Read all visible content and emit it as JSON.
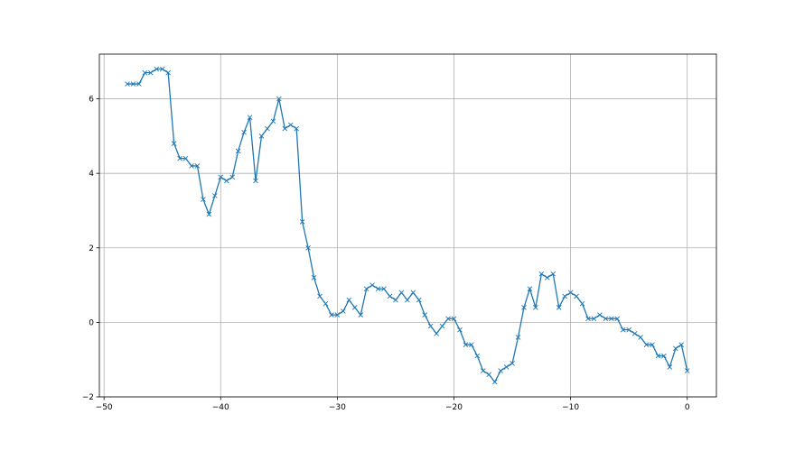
{
  "chart_data": {
    "type": "line",
    "title": "",
    "xlabel": "",
    "ylabel": "",
    "xlim": [
      -50.4,
      2.5
    ],
    "ylim": [
      -2.0,
      7.2
    ],
    "grid": true,
    "marker": "x",
    "color": "#1f77b4",
    "xticks": [
      -50,
      -40,
      -30,
      -20,
      -10,
      0
    ],
    "yticks": [
      -2,
      0,
      2,
      4,
      6
    ],
    "x_start": -48,
    "x_step": 0.5,
    "series": [
      {
        "values": [
          6.4,
          6.4,
          6.4,
          6.7,
          6.7,
          6.8,
          6.8,
          6.7,
          4.8,
          4.4,
          4.4,
          4.2,
          4.2,
          3.3,
          2.9,
          3.4,
          3.9,
          3.8,
          3.9,
          4.6,
          5.1,
          5.5,
          3.8,
          5.0,
          5.2,
          5.4,
          6.0,
          5.2,
          5.3,
          5.2,
          2.7,
          2.0,
          1.2,
          0.7,
          0.5,
          0.2,
          0.2,
          0.3,
          0.6,
          0.4,
          0.2,
          0.9,
          1.0,
          0.9,
          0.9,
          0.7,
          0.6,
          0.8,
          0.6,
          0.8,
          0.6,
          0.2,
          -0.1,
          -0.3,
          -0.1,
          0.1,
          0.1,
          -0.2,
          -0.6,
          -0.6,
          -0.9,
          -1.3,
          -1.4,
          -1.6,
          -1.3,
          -1.2,
          -1.1,
          -0.4,
          0.4,
          0.9,
          0.4,
          1.3,
          1.2,
          1.3,
          0.4,
          0.7,
          0.8,
          0.7,
          0.5,
          0.1,
          0.1,
          0.2,
          0.1,
          0.1,
          0.1,
          -0.2,
          -0.2,
          -0.3,
          -0.4,
          -0.6,
          -0.6,
          -0.9,
          -0.9,
          -1.2,
          -0.7,
          -0.6,
          -1.3
        ]
      }
    ]
  }
}
